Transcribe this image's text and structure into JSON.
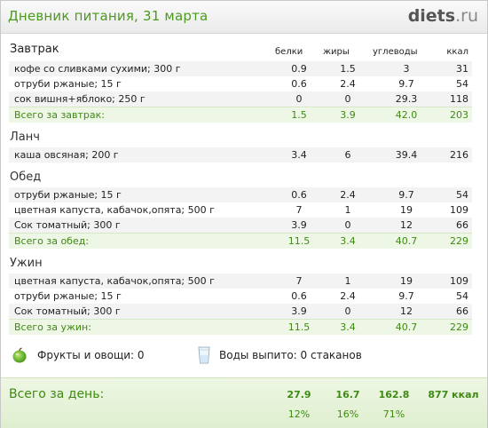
{
  "header": {
    "title": "Дневник питания, 31 марта",
    "logo_main": "diets",
    "logo_tld": ".ru"
  },
  "columns": {
    "proteins": "белки",
    "fats": "жиры",
    "carbs": "углеводы",
    "kcal": "ккал"
  },
  "meals": [
    {
      "name": "Завтрак",
      "items": [
        {
          "food": "кофе со сливками сухими; 300 г",
          "p": "0.9",
          "f": "1.5",
          "u": "3",
          "k": "31"
        },
        {
          "food": "отруби ржаные; 15 г",
          "p": "0.6",
          "f": "2.4",
          "u": "9.7",
          "k": "54"
        },
        {
          "food": "сок вишня+яблоко; 250 г",
          "p": "0",
          "f": "0",
          "u": "29.3",
          "k": "118"
        }
      ],
      "total": {
        "label": "Всего за завтрак:",
        "p": "1.5",
        "f": "3.9",
        "u": "42.0",
        "k": "203"
      }
    },
    {
      "name": "Ланч",
      "items": [
        {
          "food": "каша овсяная; 200 г",
          "p": "3.4",
          "f": "6",
          "u": "39.4",
          "k": "216"
        }
      ]
    },
    {
      "name": "Обед",
      "items": [
        {
          "food": "отруби ржаные; 15 г",
          "p": "0.6",
          "f": "2.4",
          "u": "9.7",
          "k": "54"
        },
        {
          "food": "цветная капуста, кабачок,опята; 500 г",
          "p": "7",
          "f": "1",
          "u": "19",
          "k": "109"
        },
        {
          "food": "Сок томатный; 300 г",
          "p": "3.9",
          "f": "0",
          "u": "12",
          "k": "66"
        }
      ],
      "total": {
        "label": "Всего за обед:",
        "p": "11.5",
        "f": "3.4",
        "u": "40.7",
        "k": "229"
      }
    },
    {
      "name": "Ужин",
      "items": [
        {
          "food": "цветная капуста, кабачок,опята; 500 г",
          "p": "7",
          "f": "1",
          "u": "19",
          "k": "109"
        },
        {
          "food": "отруби ржаные; 15 г",
          "p": "0.6",
          "f": "2.4",
          "u": "9.7",
          "k": "54"
        },
        {
          "food": "Сок томатный; 300 г",
          "p": "3.9",
          "f": "0",
          "u": "12",
          "k": "66"
        }
      ],
      "total": {
        "label": "Всего за ужин:",
        "p": "11.5",
        "f": "3.4",
        "u": "40.7",
        "k": "229"
      }
    }
  ],
  "extras": {
    "fruits": "Фрукты и овощи: 0",
    "water": "Воды выпито: 0 стаканов"
  },
  "icons": {
    "fruits_icon": "apple-icon",
    "water_icon": "glass-icon"
  },
  "day": {
    "label": "Всего за день:",
    "p": "27.9",
    "f": "16.7",
    "u": "162.8",
    "k": "877 ккал",
    "p_pct": "12%",
    "f_pct": "16%",
    "u_pct": "71%"
  },
  "colors": {
    "accent_green": "#3f8a14",
    "title_green": "#4c9a1f"
  }
}
